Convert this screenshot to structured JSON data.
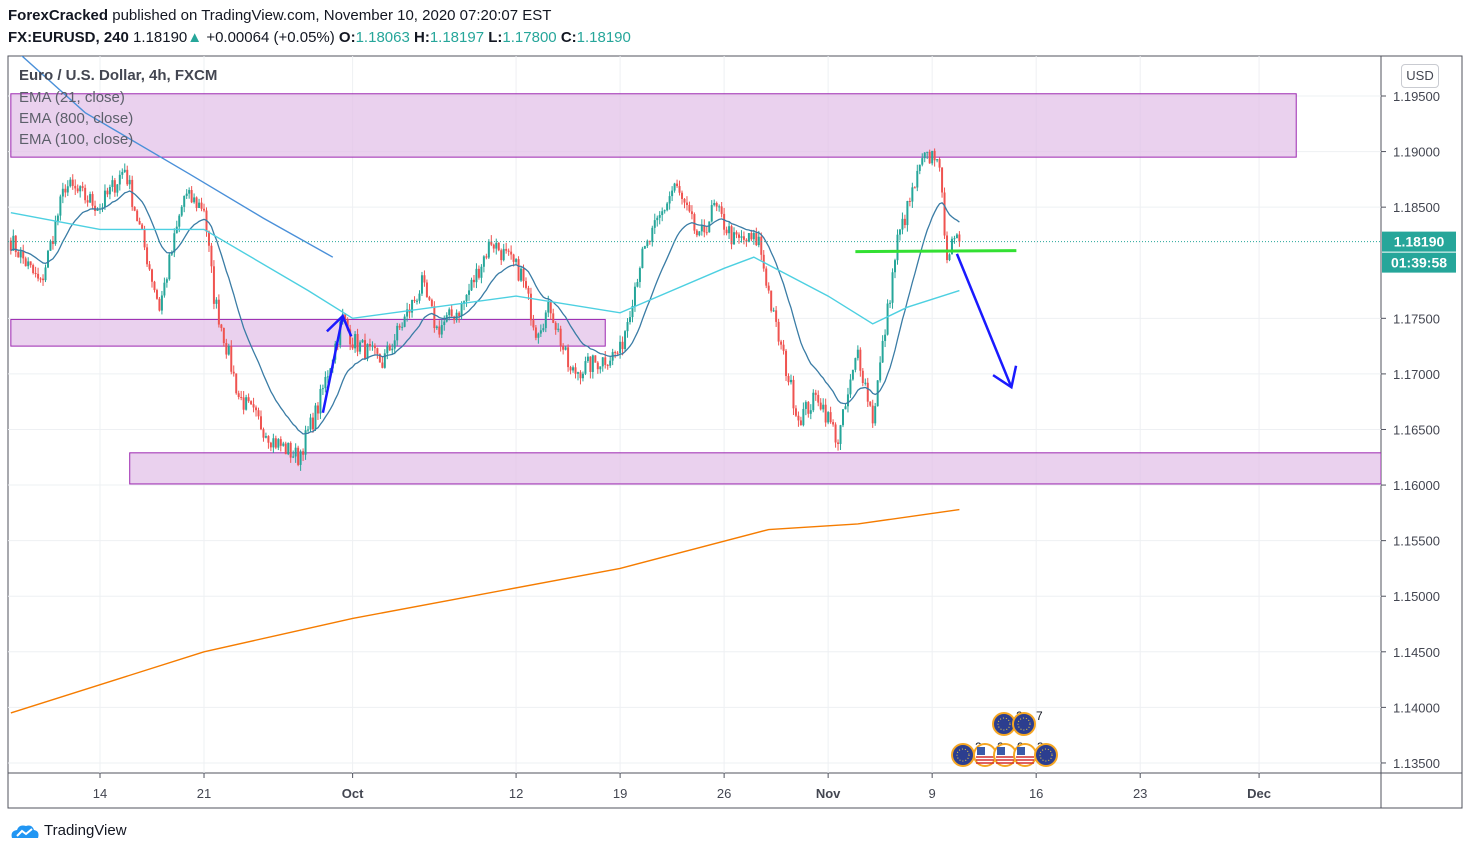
{
  "header": {
    "author": "ForexCracked",
    "published": "published on TradingView.com, November 10, 2020 07:20:07 EST",
    "symbol": "FX:EURUSD, 240",
    "last": "1.18190",
    "change": "+0.00064 (+0.05%)",
    "o_label": "O:",
    "o": "1.18063",
    "h_label": "H:",
    "h": "1.18197",
    "l_label": "L:",
    "l": "1.17800",
    "c_label": "C:",
    "c": "1.18190"
  },
  "legend": {
    "title": "Euro / U.S. Dollar, 4h, FXCM",
    "indicators": [
      "EMA (21, close)",
      "EMA (800, close)",
      "EMA (100, close)"
    ]
  },
  "currency_button": "USD",
  "branding": "TradingView",
  "colors": {
    "up": "#26a69a",
    "down": "#ef5350",
    "zone": "#e1bee7",
    "zone_border": "#9c27b0",
    "ema21": "#3a7ca5",
    "ema100": "#4dd0e1",
    "ema800": "#f57c00",
    "ema_blue": "#4a90d9",
    "arrow": "#1a1aff",
    "support": "#33e033",
    "price_label": "#26a69a"
  },
  "chart_data": {
    "type": "candlestick",
    "timeframe": "4h",
    "ylim": [
      1.1345,
      1.1985
    ],
    "y_ticks": [
      "1.19500",
      "1.19000",
      "1.18500",
      "1.17500",
      "1.17000",
      "1.16500",
      "1.16000",
      "1.15500",
      "1.15000",
      "1.14500",
      "1.14000",
      "1.13500"
    ],
    "x_ticks": [
      {
        "label": "14",
        "date": "2020-09-14"
      },
      {
        "label": "21",
        "date": "2020-09-21"
      },
      {
        "label": "Oct",
        "date": "2020-10-01"
      },
      {
        "label": "12",
        "date": "2020-10-12"
      },
      {
        "label": "19",
        "date": "2020-10-19"
      },
      {
        "label": "26",
        "date": "2020-10-26"
      },
      {
        "label": "Nov",
        "date": "2020-11-02"
      },
      {
        "label": "9",
        "date": "2020-11-09"
      },
      {
        "label": "16",
        "date": "2020-11-16"
      },
      {
        "label": "23",
        "date": "2020-11-23"
      },
      {
        "label": "Dec",
        "date": "2020-12-01"
      }
    ],
    "price_path": [
      [
        "2020-09-08T00",
        1.182
      ],
      [
        "2020-09-10T00",
        1.178
      ],
      [
        "2020-09-11T16",
        1.187
      ],
      [
        "2020-09-14T00",
        1.185
      ],
      [
        "2020-09-15T16",
        1.1885
      ],
      [
        "2020-09-18T00",
        1.176
      ],
      [
        "2020-09-19T16",
        1.186
      ],
      [
        "2020-09-21T00",
        1.185
      ],
      [
        "2020-09-21T16",
        1.177
      ],
      [
        "2020-09-23T08",
        1.168
      ],
      [
        "2020-09-25T16",
        1.164
      ],
      [
        "2020-09-27T08",
        1.1625
      ],
      [
        "2020-09-28T16",
        1.167
      ],
      [
        "2020-09-30T08",
        1.175
      ],
      [
        "2020-10-01T00",
        1.173
      ],
      [
        "2020-10-03T00",
        1.171
      ],
      [
        "2020-10-05T16",
        1.178
      ],
      [
        "2020-10-06T16",
        1.174
      ],
      [
        "2020-10-08T08",
        1.176
      ],
      [
        "2020-10-10T08",
        1.182
      ],
      [
        "2020-10-12T08",
        1.179
      ],
      [
        "2020-10-13T08",
        1.174
      ],
      [
        "2020-10-14T08",
        1.176
      ],
      [
        "2020-10-15T16",
        1.17
      ],
      [
        "2020-10-19T00",
        1.172
      ],
      [
        "2020-10-20T08",
        1.18
      ],
      [
        "2020-10-22T16",
        1.187
      ],
      [
        "2020-10-24T08",
        1.182
      ],
      [
        "2020-10-25T08",
        1.185
      ],
      [
        "2020-10-26T16",
        1.182
      ],
      [
        "2020-10-28T08",
        1.182
      ],
      [
        "2020-10-29T08",
        1.175
      ],
      [
        "2020-10-31T00",
        1.166
      ],
      [
        "2020-11-01T08",
        1.168
      ],
      [
        "2020-11-02T16",
        1.164
      ],
      [
        "2020-11-04T00",
        1.172
      ],
      [
        "2020-11-05T00",
        1.166
      ],
      [
        "2020-11-06T16",
        1.182
      ],
      [
        "2020-11-08T08",
        1.189
      ],
      [
        "2020-11-09T08",
        1.19
      ],
      [
        "2020-11-10T00",
        1.181
      ],
      [
        "2020-11-10T20",
        1.1819
      ]
    ],
    "series": [
      {
        "name": "EMA (21, close)",
        "color": "#3a7ca5",
        "computed_from": "close"
      },
      {
        "name": "EMA (800, close)",
        "color": "#f57c00",
        "points": [
          [
            "2020-09-08T00",
            1.1395
          ],
          [
            "2020-09-21T00",
            1.145
          ],
          [
            "2020-10-01T00",
            1.148
          ],
          [
            "2020-10-19T00",
            1.1525
          ],
          [
            "2020-10-29T00",
            1.156
          ],
          [
            "2020-11-04T00",
            1.1565
          ],
          [
            "2020-11-10T20",
            1.1578
          ]
        ]
      },
      {
        "name": "EMA (100, close)",
        "color": "#4dd0e1",
        "points": [
          [
            "2020-09-08T00",
            1.1845
          ],
          [
            "2020-09-14T00",
            1.183
          ],
          [
            "2020-09-21T00",
            1.183
          ],
          [
            "2020-09-28T00",
            1.1775
          ],
          [
            "2020-10-01T00",
            1.175
          ],
          [
            "2020-10-12T00",
            1.177
          ],
          [
            "2020-10-19T00",
            1.1755
          ],
          [
            "2020-10-26T00",
            1.1795
          ],
          [
            "2020-10-28T00",
            1.1805
          ],
          [
            "2020-11-02T00",
            1.177
          ],
          [
            "2020-11-05T00",
            1.1745
          ],
          [
            "2020-11-07T08",
            1.176
          ],
          [
            "2020-11-10T20",
            1.1775
          ]
        ]
      },
      {
        "color": "#4a90d9",
        "points": [
          [
            "2020-09-08T00",
            1.1995
          ],
          [
            "2020-09-13T00",
            1.1935
          ],
          [
            "2020-09-20T00",
            1.188
          ],
          [
            "2020-09-25T00",
            1.184
          ],
          [
            "2020-09-29T16",
            1.1805
          ]
        ]
      }
    ],
    "zones": [
      {
        "from": "2020-09-08T00",
        "to": "2020-12-03T12",
        "low": 1.1895,
        "high": 1.1952
      },
      {
        "from": "2020-09-08T00",
        "to": "2020-10-18T00",
        "low": 1.1725,
        "high": 1.1749
      },
      {
        "from": "2020-09-16T00",
        "to": "2020-12-10T00",
        "low": 1.1601,
        "high": 1.1629
      }
    ],
    "support_line": {
      "from": "2020-11-03T20",
      "to": "2020-11-14T16",
      "price": 1.181
    },
    "arrows": [
      {
        "direction": "up",
        "from": [
          "2020-09-29T00",
          1.1665
        ],
        "to": [
          "2020-09-30T08",
          1.1752
        ]
      },
      {
        "direction": "down",
        "from": [
          "2020-11-10T16",
          1.1808
        ],
        "to": [
          "2020-11-14T08",
          1.1688
        ]
      }
    ],
    "last_price": "1.18190",
    "countdown": "01:39:58",
    "events": {
      "row1": [
        "2",
        "7"
      ],
      "row2": [
        "2",
        "2",
        "9",
        "3"
      ]
    }
  }
}
